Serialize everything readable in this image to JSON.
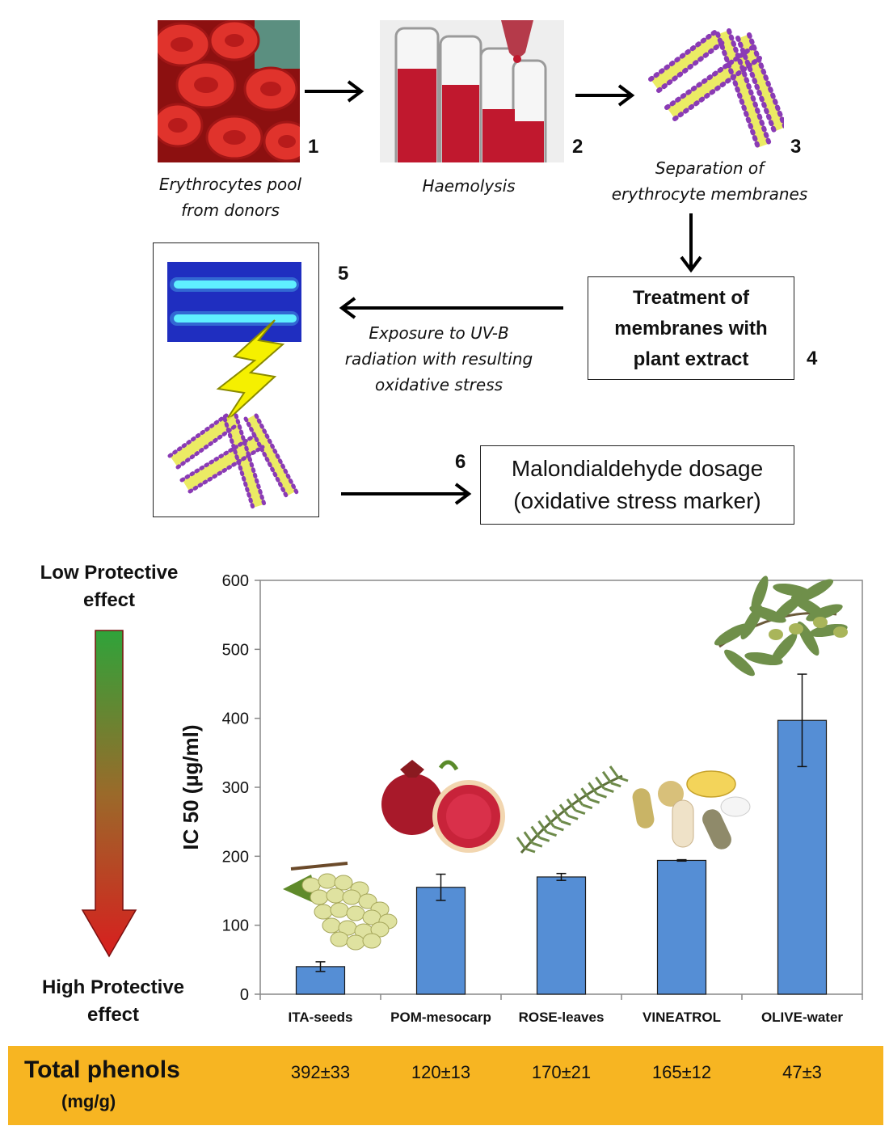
{
  "steps": {
    "s1": {
      "number": "1",
      "caption_line1": "Erythrocytes pool",
      "caption_line2": "from donors"
    },
    "s2": {
      "number": "2",
      "caption": "Haemolysis"
    },
    "s3": {
      "number": "3",
      "caption_line1": "Separation of",
      "caption_line2": "erythrocyte  membranes"
    },
    "s4": {
      "number": "4",
      "line1": "Treatment of",
      "line2": "membranes  with",
      "line3": "plant extract"
    },
    "s5": {
      "number": "5",
      "caption_line1": "Exposure to UV-B",
      "caption_line2": "radiation with resulting",
      "caption_line3": "oxidative stress"
    },
    "s6": {
      "number": "6",
      "line1": "Malondialdehyde dosage",
      "line2": "(oxidative stress marker)"
    }
  },
  "scale_arrow": {
    "top_label_line1": "Low Protective",
    "top_label_line2": "effect",
    "bottom_label_line1": "High Protective",
    "bottom_label_line2": "effect",
    "color_top": "#2fa33a",
    "color_bottom": "#d81e1e"
  },
  "chart_data": {
    "type": "bar",
    "ylabel": "IC 50 (µg/ml)",
    "ylim": [
      0,
      600
    ],
    "yticks": [
      "0",
      "100",
      "200",
      "300",
      "400",
      "500",
      "600"
    ],
    "categories": [
      "ITA-seeds",
      "POM-mesocarp",
      "ROSE-leaves",
      "VINEATROL",
      "OLIVE-water"
    ],
    "values": [
      40,
      155,
      170,
      194,
      397
    ],
    "errors": [
      7,
      19,
      5,
      1,
      67
    ],
    "bar_color": "#558ed5",
    "grid": false
  },
  "phenols": {
    "label": "Total phenols",
    "unit": "(mg/g)",
    "values": [
      "392±33",
      "120±13",
      "170±21",
      "165±12",
      "47±3"
    ],
    "band_color": "#f7b522"
  }
}
